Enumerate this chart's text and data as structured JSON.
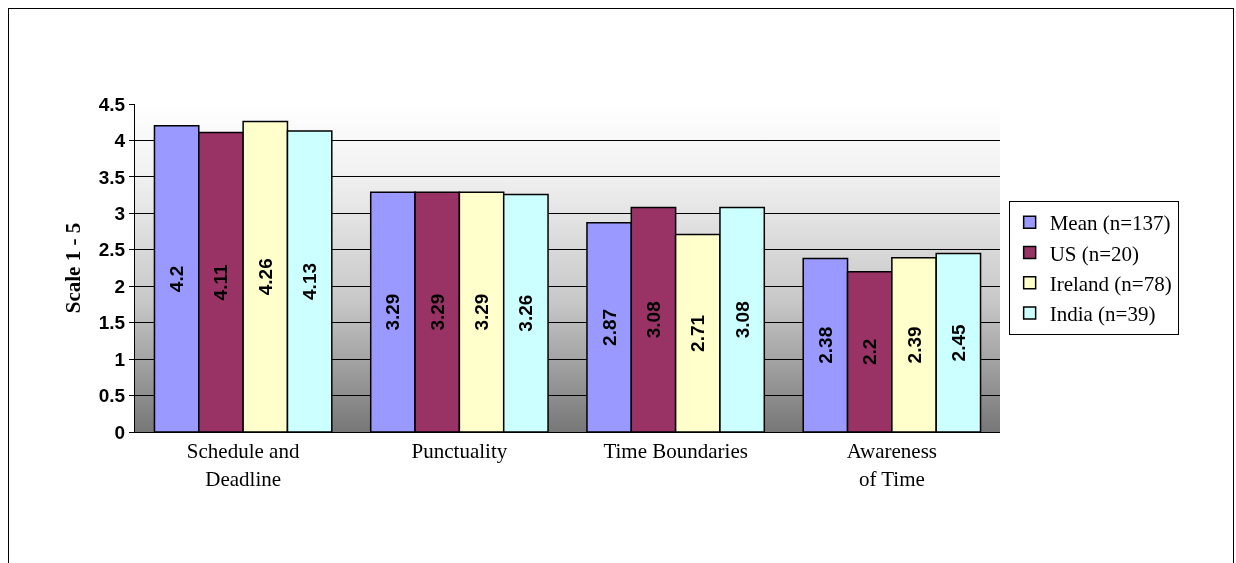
{
  "chart_data": {
    "type": "bar",
    "ylabel": "Scale 1 - 5",
    "categories": [
      "Schedule and Deadline",
      "Punctuality",
      "Time Boundaries",
      "Awareness of Time"
    ],
    "series": [
      {
        "name": "Mean (n=137)",
        "color": "#9999ff",
        "values": [
          4.2,
          3.29,
          2.87,
          2.38
        ]
      },
      {
        "name": "US (n=20)",
        "color": "#993366",
        "values": [
          4.11,
          3.29,
          3.08,
          2.2
        ]
      },
      {
        "name": "Ireland (n=78)",
        "color": "#ffffcc",
        "values": [
          4.26,
          3.29,
          2.71,
          2.39
        ]
      },
      {
        "name": "India (n=39)",
        "color": "#ccffff",
        "values": [
          4.13,
          3.26,
          3.08,
          2.45
        ]
      }
    ],
    "ylim": [
      0,
      4.5
    ],
    "yticks": [
      0,
      0.5,
      1,
      1.5,
      2,
      2.5,
      3,
      3.5,
      4,
      4.5
    ],
    "grid": "y",
    "legend": "right",
    "data_labels": true
  }
}
